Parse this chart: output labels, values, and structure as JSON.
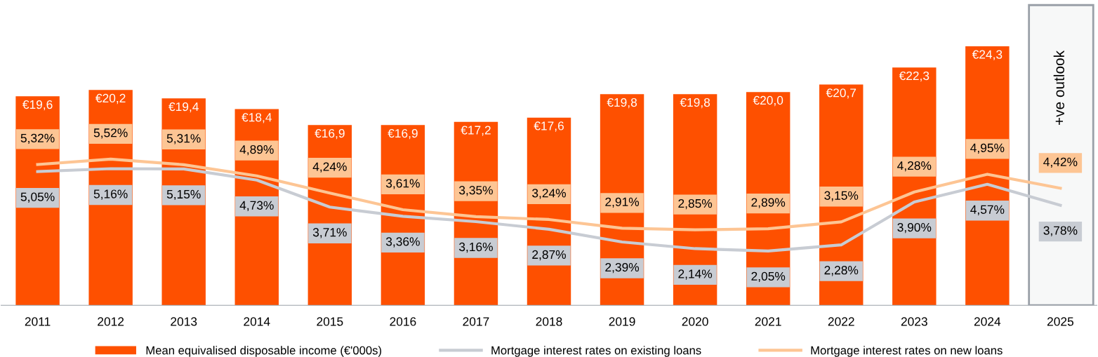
{
  "chart_data": {
    "type": "bar",
    "categories": [
      "2011",
      "2012",
      "2013",
      "2014",
      "2015",
      "2016",
      "2017",
      "2018",
      "2019",
      "2020",
      "2021",
      "2022",
      "2023",
      "2024",
      "2025"
    ],
    "series": [
      {
        "name": "Mean equivalised disposable income (€'000s)",
        "type": "bar",
        "color": "#fe5000",
        "values": [
          19.6,
          20.2,
          19.4,
          18.4,
          16.9,
          16.9,
          17.2,
          17.6,
          19.8,
          19.8,
          20.0,
          20.7,
          22.3,
          24.3,
          null
        ],
        "value_labels": [
          "€19,6",
          "€20,2",
          "€19,4",
          "€18,4",
          "€16,9",
          "€16,9",
          "€17,2",
          "€17,6",
          "€19,8",
          "€19,8",
          "€20,0",
          "€20,7",
          "€22,3",
          "€24,3",
          null
        ]
      },
      {
        "name": "Mortgage interest rates on existing loans",
        "type": "line",
        "axis": "y2",
        "color": "#c8ccd3",
        "values": [
          5.05,
          5.16,
          5.15,
          4.73,
          3.71,
          3.36,
          3.16,
          2.87,
          2.39,
          2.14,
          2.05,
          2.28,
          3.9,
          4.57,
          3.78
        ],
        "value_labels": [
          "5,05%",
          "5,16%",
          "5,15%",
          "4,73%",
          "3,71%",
          "3,36%",
          "3,16%",
          "2,87%",
          "2,39%",
          "2,14%",
          "2,05%",
          "2,28%",
          "3,90%",
          "4,57%",
          "3,78%"
        ]
      },
      {
        "name": "Mortgage interest rates on new loans",
        "type": "line",
        "axis": "y2",
        "color": "#fdc594",
        "values": [
          5.32,
          5.52,
          5.31,
          4.89,
          4.24,
          3.61,
          3.35,
          3.24,
          2.91,
          2.85,
          2.89,
          3.15,
          4.28,
          4.95,
          4.42
        ],
        "value_labels": [
          "5,32%",
          "5,52%",
          "5,31%",
          "4,89%",
          "4,24%",
          "3,61%",
          "3,35%",
          "3,24%",
          "2,91%",
          "2,85%",
          "2,89%",
          "3,15%",
          "4,28%",
          "4,95%",
          "4,42%"
        ]
      }
    ],
    "ylim": [
      0,
      28.3
    ],
    "y2lim": [
      0,
      11.4
    ],
    "tick_labels": "x",
    "grid": false,
    "legend": "bottom",
    "marker": "none",
    "line_style": "solid",
    "bands": [
      {
        "axis": "x",
        "from": "2025",
        "to": "2025",
        "label": "+ve outlook",
        "color": "#9aa0a8"
      }
    ]
  }
}
